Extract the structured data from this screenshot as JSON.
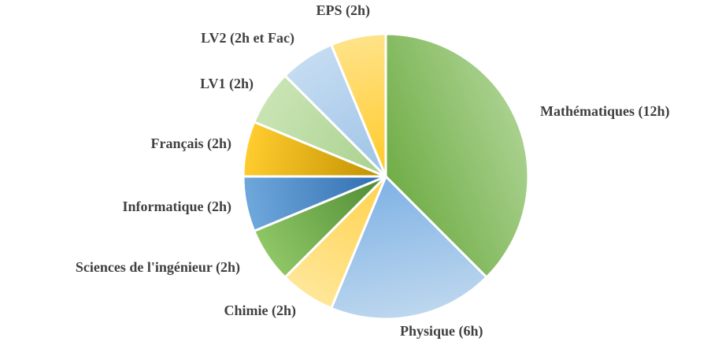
{
  "chart_data": {
    "type": "pie",
    "start_angle_deg": 0,
    "direction": "clockwise",
    "slices": [
      {
        "label": "Mathématiques (12h)",
        "value": 12,
        "color": "#8FC766",
        "gradient": [
          "#70AD47",
          "#A9D18E"
        ]
      },
      {
        "label": "Physique (6h)",
        "value": 6,
        "color": "#9DC3E6",
        "gradient": [
          "#7FB2E5",
          "#BDD7EE"
        ]
      },
      {
        "label": "Chimie (2h)",
        "value": 2,
        "color": "#FFD966",
        "gradient": [
          "#FFD24A",
          "#FFE699"
        ]
      },
      {
        "label": "Sciences de l'ingénieur (2h)",
        "value": 2,
        "color": "#6AA84F",
        "gradient": [
          "#4E8A33",
          "#8FC766"
        ]
      },
      {
        "label": "Informatique (2h)",
        "value": 2,
        "color": "#4A8CCB",
        "gradient": [
          "#2E6CAE",
          "#6FA8DC"
        ]
      },
      {
        "label": "Français (2h)",
        "value": 2,
        "color": "#F2B800",
        "gradient": [
          "#BF8F00",
          "#FFCD2E"
        ]
      },
      {
        "label": "LV1 (2h)",
        "value": 2,
        "color": "#B7DBA0",
        "gradient": [
          "#A9D18E",
          "#C9E4B4"
        ]
      },
      {
        "label": "LV2 (2h et Fac)",
        "value": 2,
        "color": "#A9CBEB",
        "gradient": [
          "#9DC3E6",
          "#C5DCF2"
        ]
      },
      {
        "label": "EPS (2h)",
        "value": 2,
        "color": "#FFD34D",
        "gradient": [
          "#FFC926",
          "#FFE38A"
        ]
      }
    ]
  }
}
